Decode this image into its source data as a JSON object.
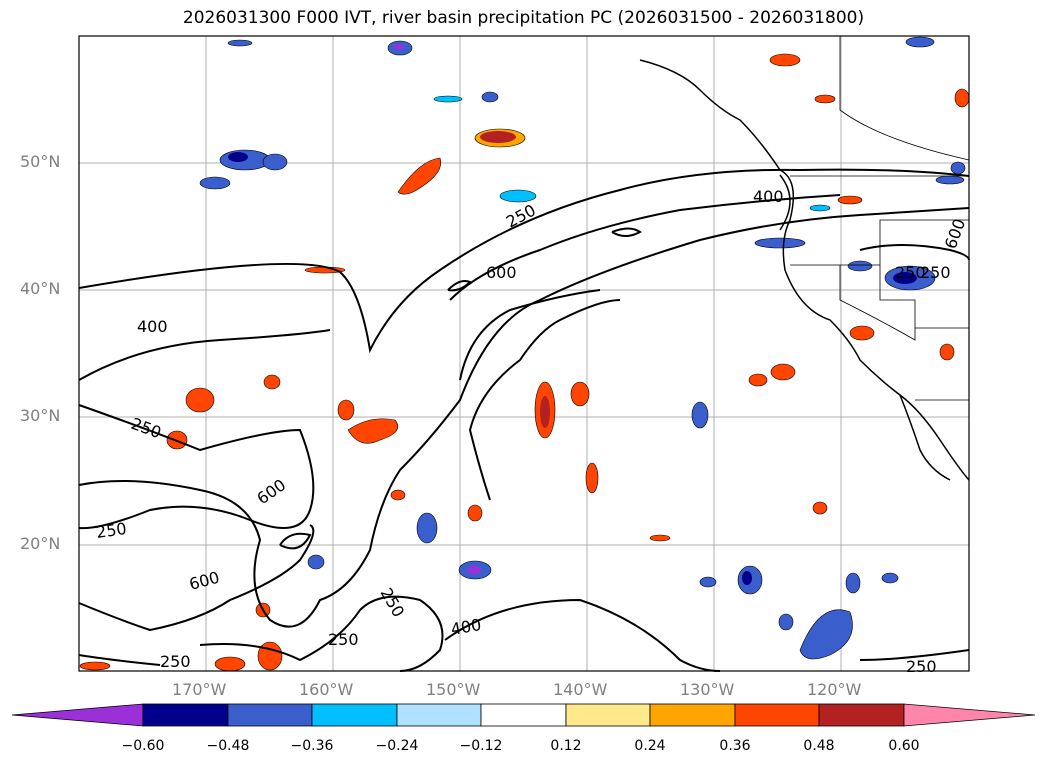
{
  "title": "2026031300 F000 IVT, river basin precipitation PC (2026031500 - 2026031800)",
  "map": {
    "lat_labels": [
      "50°N",
      "40°N",
      "30°N",
      "20°N"
    ],
    "lon_labels": [
      "170°W",
      "160°W",
      "150°W",
      "140°W",
      "130°W",
      "120°W"
    ],
    "contour_labels": [
      "250",
      "400",
      "600",
      "250",
      "600",
      "400",
      "250",
      "600",
      "250",
      "600",
      "250",
      "400",
      "250",
      "250",
      "250",
      "250"
    ]
  },
  "colorbar": {
    "tick_labels": [
      "−0.60",
      "−0.48",
      "−0.36",
      "−0.24",
      "−0.12",
      "0.12",
      "0.24",
      "0.36",
      "0.48",
      "0.60"
    ],
    "colors": [
      "#9b30d9",
      "#00008b",
      "#3a5fcd",
      "#00bfff",
      "#b0e2ff",
      "#ffffff",
      "#ffe98a",
      "#ffa500",
      "#ff4500",
      "#b22222",
      "#ff85aa"
    ]
  }
}
